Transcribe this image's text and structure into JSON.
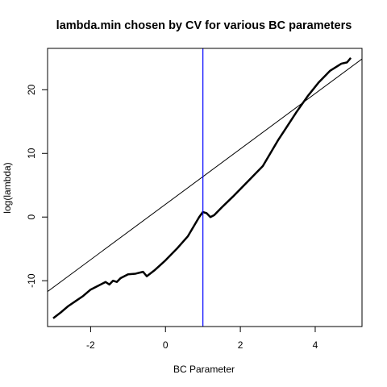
{
  "chart_data": {
    "type": "line",
    "title": "lambda.min chosen by CV for various BC parameters",
    "xlabel": "BC Parameter",
    "ylabel": "log(lambda)",
    "xlim": [
      -3.15,
      5.25
    ],
    "ylim": [
      -17.2,
      26.5
    ],
    "x_ticks": [
      -2,
      0,
      2,
      4
    ],
    "y_ticks": [
      -10,
      0,
      10,
      20
    ],
    "x_tick_labels": [
      "-2",
      "0",
      "2",
      "4"
    ],
    "y_tick_labels": [
      "-10",
      "0",
      "10",
      "20"
    ],
    "grid": false,
    "series": [
      {
        "values": [
          {
            "x": -3.0,
            "y": -15.9
          },
          {
            "x": -2.8,
            "y": -15.0
          },
          {
            "x": -2.6,
            "y": -14.0
          },
          {
            "x": -2.4,
            "y": -13.2
          },
          {
            "x": -2.2,
            "y": -12.4
          },
          {
            "x": -2.0,
            "y": -11.4
          },
          {
            "x": -1.8,
            "y": -10.8
          },
          {
            "x": -1.6,
            "y": -10.2
          },
          {
            "x": -1.5,
            "y": -10.6
          },
          {
            "x": -1.4,
            "y": -10.0
          },
          {
            "x": -1.3,
            "y": -10.2
          },
          {
            "x": -1.2,
            "y": -9.6
          },
          {
            "x": -1.0,
            "y": -9.0
          },
          {
            "x": -0.8,
            "y": -8.9
          },
          {
            "x": -0.6,
            "y": -8.6
          },
          {
            "x": -0.5,
            "y": -9.3
          },
          {
            "x": -0.3,
            "y": -8.4
          },
          {
            "x": 0.0,
            "y": -6.8
          },
          {
            "x": 0.3,
            "y": -5.0
          },
          {
            "x": 0.6,
            "y": -3.0
          },
          {
            "x": 0.9,
            "y": 0.0
          },
          {
            "x": 1.0,
            "y": 0.8
          },
          {
            "x": 1.1,
            "y": 0.6
          },
          {
            "x": 1.2,
            "y": 0.0
          },
          {
            "x": 1.3,
            "y": 0.3
          },
          {
            "x": 1.5,
            "y": 1.5
          },
          {
            "x": 1.8,
            "y": 3.2
          },
          {
            "x": 2.0,
            "y": 4.4
          },
          {
            "x": 2.3,
            "y": 6.2
          },
          {
            "x": 2.6,
            "y": 8.0
          },
          {
            "x": 2.8,
            "y": 10.0
          },
          {
            "x": 3.0,
            "y": 12.0
          },
          {
            "x": 3.2,
            "y": 13.8
          },
          {
            "x": 3.5,
            "y": 16.5
          },
          {
            "x": 3.8,
            "y": 19.0
          },
          {
            "x": 4.1,
            "y": 21.2
          },
          {
            "x": 4.4,
            "y": 23.0
          },
          {
            "x": 4.7,
            "y": 24.1
          },
          {
            "x": 4.85,
            "y": 24.3
          },
          {
            "x": 4.95,
            "y": 25.0
          }
        ],
        "color": "#000000"
      }
    ],
    "reference_line": {
      "intercept": 2.0,
      "slope": 4.35,
      "color": "#000000"
    },
    "vline": {
      "x": 1.0,
      "color": "#0000ff"
    }
  }
}
